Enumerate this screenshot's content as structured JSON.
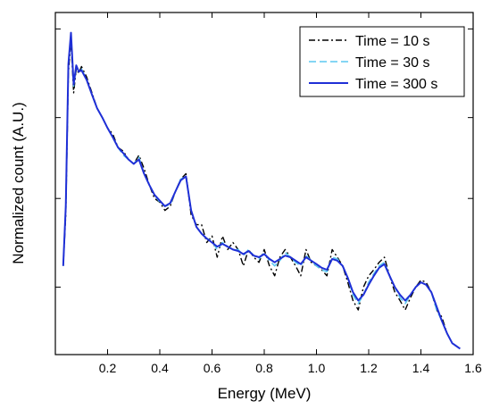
{
  "chart_data": {
    "type": "line",
    "title": "",
    "xlabel": "Energy (MeV)",
    "ylabel": "Normalized count (A.U.)",
    "xlim": [
      0.0,
      1.6
    ],
    "ylim": [
      0.012,
      1.25
    ],
    "y_scale": "log",
    "x_ticks": [
      0.2,
      0.4,
      0.6,
      0.8,
      1.0,
      1.2,
      1.4,
      1.6
    ],
    "x_tick_labels": [
      "0.2",
      "0.4",
      "0.6",
      "0.8",
      "1.0",
      "1.2",
      "1.4",
      "1.6"
    ],
    "y_ticks": [
      0.03,
      0.1,
      0.3,
      1.0
    ],
    "grid": false,
    "legend_position": "top-right",
    "series": [
      {
        "name": "Time = 10 s",
        "color": "#000000",
        "line_style": "dash-dot",
        "points": [
          [
            0.03,
            0.04
          ],
          [
            0.04,
            0.08
          ],
          [
            0.05,
            0.55
          ],
          [
            0.06,
            0.85
          ],
          [
            0.07,
            0.42
          ],
          [
            0.08,
            0.58
          ],
          [
            0.09,
            0.55
          ],
          [
            0.1,
            0.6
          ],
          [
            0.12,
            0.52
          ],
          [
            0.14,
            0.42
          ],
          [
            0.16,
            0.34
          ],
          [
            0.18,
            0.3
          ],
          [
            0.2,
            0.26
          ],
          [
            0.22,
            0.24
          ],
          [
            0.24,
            0.2
          ],
          [
            0.26,
            0.19
          ],
          [
            0.28,
            0.17
          ],
          [
            0.3,
            0.16
          ],
          [
            0.32,
            0.18
          ],
          [
            0.34,
            0.15
          ],
          [
            0.36,
            0.12
          ],
          [
            0.38,
            0.1
          ],
          [
            0.4,
            0.095
          ],
          [
            0.42,
            0.085
          ],
          [
            0.44,
            0.09
          ],
          [
            0.46,
            0.11
          ],
          [
            0.48,
            0.13
          ],
          [
            0.5,
            0.14
          ],
          [
            0.52,
            0.08
          ],
          [
            0.54,
            0.07
          ],
          [
            0.56,
            0.07
          ],
          [
            0.58,
            0.055
          ],
          [
            0.6,
            0.06
          ],
          [
            0.62,
            0.045
          ],
          [
            0.64,
            0.06
          ],
          [
            0.66,
            0.05
          ],
          [
            0.68,
            0.055
          ],
          [
            0.7,
            0.05
          ],
          [
            0.72,
            0.04
          ],
          [
            0.74,
            0.05
          ],
          [
            0.76,
            0.045
          ],
          [
            0.78,
            0.042
          ],
          [
            0.8,
            0.05
          ],
          [
            0.82,
            0.04
          ],
          [
            0.84,
            0.035
          ],
          [
            0.86,
            0.045
          ],
          [
            0.88,
            0.05
          ],
          [
            0.9,
            0.045
          ],
          [
            0.92,
            0.04
          ],
          [
            0.94,
            0.035
          ],
          [
            0.96,
            0.05
          ],
          [
            0.98,
            0.042
          ],
          [
            1.0,
            0.04
          ],
          [
            1.02,
            0.038
          ],
          [
            1.04,
            0.035
          ],
          [
            1.06,
            0.05
          ],
          [
            1.08,
            0.045
          ],
          [
            1.1,
            0.04
          ],
          [
            1.12,
            0.032
          ],
          [
            1.14,
            0.025
          ],
          [
            1.16,
            0.022
          ],
          [
            1.18,
            0.03
          ],
          [
            1.2,
            0.035
          ],
          [
            1.22,
            0.038
          ],
          [
            1.24,
            0.042
          ],
          [
            1.26,
            0.045
          ],
          [
            1.28,
            0.035
          ],
          [
            1.3,
            0.028
          ],
          [
            1.32,
            0.025
          ],
          [
            1.34,
            0.022
          ],
          [
            1.36,
            0.026
          ],
          [
            1.38,
            0.03
          ],
          [
            1.4,
            0.033
          ],
          [
            1.42,
            0.032
          ],
          [
            1.44,
            0.028
          ],
          [
            1.46,
            0.022
          ],
          [
            1.48,
            0.02
          ],
          [
            1.5,
            0.016
          ],
          [
            1.52,
            0.014
          ],
          [
            1.55,
            0.013
          ]
        ]
      },
      {
        "name": "Time = 30 s",
        "color": "#5bc8f0",
        "line_style": "dashed",
        "points": [
          [
            0.03,
            0.04
          ],
          [
            0.04,
            0.09
          ],
          [
            0.05,
            0.6
          ],
          [
            0.06,
            0.92
          ],
          [
            0.07,
            0.46
          ],
          [
            0.08,
            0.6
          ],
          [
            0.09,
            0.56
          ],
          [
            0.1,
            0.58
          ],
          [
            0.12,
            0.5
          ],
          [
            0.14,
            0.41
          ],
          [
            0.16,
            0.34
          ],
          [
            0.18,
            0.3
          ],
          [
            0.2,
            0.26
          ],
          [
            0.22,
            0.23
          ],
          [
            0.24,
            0.2
          ],
          [
            0.26,
            0.18
          ],
          [
            0.28,
            0.17
          ],
          [
            0.3,
            0.16
          ],
          [
            0.32,
            0.175
          ],
          [
            0.34,
            0.14
          ],
          [
            0.36,
            0.12
          ],
          [
            0.38,
            0.105
          ],
          [
            0.4,
            0.095
          ],
          [
            0.42,
            0.09
          ],
          [
            0.44,
            0.092
          ],
          [
            0.46,
            0.11
          ],
          [
            0.48,
            0.13
          ],
          [
            0.5,
            0.135
          ],
          [
            0.52,
            0.085
          ],
          [
            0.54,
            0.068
          ],
          [
            0.56,
            0.062
          ],
          [
            0.58,
            0.058
          ],
          [
            0.6,
            0.056
          ],
          [
            0.62,
            0.05
          ],
          [
            0.64,
            0.055
          ],
          [
            0.66,
            0.052
          ],
          [
            0.68,
            0.05
          ],
          [
            0.7,
            0.05
          ],
          [
            0.72,
            0.046
          ],
          [
            0.74,
            0.05
          ],
          [
            0.76,
            0.046
          ],
          [
            0.78,
            0.044
          ],
          [
            0.8,
            0.048
          ],
          [
            0.82,
            0.043
          ],
          [
            0.84,
            0.04
          ],
          [
            0.86,
            0.043
          ],
          [
            0.88,
            0.048
          ],
          [
            0.9,
            0.045
          ],
          [
            0.92,
            0.042
          ],
          [
            0.94,
            0.04
          ],
          [
            0.96,
            0.046
          ],
          [
            0.98,
            0.043
          ],
          [
            1.0,
            0.04
          ],
          [
            1.02,
            0.038
          ],
          [
            1.04,
            0.037
          ],
          [
            1.06,
            0.045
          ],
          [
            1.08,
            0.044
          ],
          [
            1.1,
            0.04
          ],
          [
            1.12,
            0.034
          ],
          [
            1.14,
            0.027
          ],
          [
            1.16,
            0.024
          ],
          [
            1.18,
            0.027
          ],
          [
            1.2,
            0.032
          ],
          [
            1.22,
            0.036
          ],
          [
            1.24,
            0.04
          ],
          [
            1.26,
            0.042
          ],
          [
            1.28,
            0.035
          ],
          [
            1.3,
            0.03
          ],
          [
            1.32,
            0.026
          ],
          [
            1.34,
            0.024
          ],
          [
            1.36,
            0.027
          ],
          [
            1.38,
            0.03
          ],
          [
            1.4,
            0.032
          ],
          [
            1.42,
            0.031
          ],
          [
            1.44,
            0.028
          ],
          [
            1.46,
            0.022
          ],
          [
            1.48,
            0.019
          ],
          [
            1.5,
            0.016
          ],
          [
            1.52,
            0.014
          ],
          [
            1.55,
            0.013
          ]
        ]
      },
      {
        "name": "Time = 300 s",
        "color": "#1f2fd6",
        "line_style": "solid",
        "points": [
          [
            0.03,
            0.04
          ],
          [
            0.04,
            0.09
          ],
          [
            0.05,
            0.62
          ],
          [
            0.06,
            0.95
          ],
          [
            0.07,
            0.47
          ],
          [
            0.08,
            0.61
          ],
          [
            0.09,
            0.56
          ],
          [
            0.1,
            0.57
          ],
          [
            0.12,
            0.5
          ],
          [
            0.14,
            0.41
          ],
          [
            0.16,
            0.34
          ],
          [
            0.18,
            0.3
          ],
          [
            0.2,
            0.26
          ],
          [
            0.22,
            0.23
          ],
          [
            0.24,
            0.2
          ],
          [
            0.26,
            0.185
          ],
          [
            0.28,
            0.17
          ],
          [
            0.3,
            0.16
          ],
          [
            0.32,
            0.17
          ],
          [
            0.34,
            0.14
          ],
          [
            0.36,
            0.12
          ],
          [
            0.38,
            0.105
          ],
          [
            0.4,
            0.097
          ],
          [
            0.42,
            0.09
          ],
          [
            0.44,
            0.094
          ],
          [
            0.46,
            0.11
          ],
          [
            0.48,
            0.128
          ],
          [
            0.5,
            0.135
          ],
          [
            0.52,
            0.085
          ],
          [
            0.54,
            0.068
          ],
          [
            0.56,
            0.062
          ],
          [
            0.58,
            0.058
          ],
          [
            0.6,
            0.055
          ],
          [
            0.62,
            0.052
          ],
          [
            0.64,
            0.054
          ],
          [
            0.66,
            0.052
          ],
          [
            0.68,
            0.05
          ],
          [
            0.7,
            0.049
          ],
          [
            0.72,
            0.047
          ],
          [
            0.74,
            0.049
          ],
          [
            0.76,
            0.046
          ],
          [
            0.78,
            0.045
          ],
          [
            0.8,
            0.047
          ],
          [
            0.82,
            0.044
          ],
          [
            0.84,
            0.042
          ],
          [
            0.86,
            0.044
          ],
          [
            0.88,
            0.046
          ],
          [
            0.9,
            0.045
          ],
          [
            0.92,
            0.043
          ],
          [
            0.94,
            0.041
          ],
          [
            0.96,
            0.045
          ],
          [
            0.98,
            0.043
          ],
          [
            1.0,
            0.041
          ],
          [
            1.02,
            0.039
          ],
          [
            1.04,
            0.038
          ],
          [
            1.06,
            0.044
          ],
          [
            1.08,
            0.043
          ],
          [
            1.1,
            0.04
          ],
          [
            1.12,
            0.034
          ],
          [
            1.14,
            0.028
          ],
          [
            1.16,
            0.025
          ],
          [
            1.18,
            0.027
          ],
          [
            1.2,
            0.031
          ],
          [
            1.22,
            0.035
          ],
          [
            1.24,
            0.039
          ],
          [
            1.26,
            0.041
          ],
          [
            1.28,
            0.035
          ],
          [
            1.3,
            0.03
          ],
          [
            1.32,
            0.027
          ],
          [
            1.34,
            0.025
          ],
          [
            1.36,
            0.027
          ],
          [
            1.38,
            0.03
          ],
          [
            1.4,
            0.032
          ],
          [
            1.42,
            0.031
          ],
          [
            1.44,
            0.028
          ],
          [
            1.46,
            0.023
          ],
          [
            1.48,
            0.019
          ],
          [
            1.5,
            0.016
          ],
          [
            1.52,
            0.014
          ],
          [
            1.55,
            0.013
          ]
        ]
      }
    ]
  }
}
